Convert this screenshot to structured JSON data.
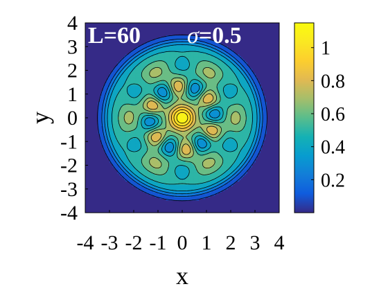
{
  "chart_data": {
    "type": "heatmap",
    "subtype": "filled-contour",
    "xlabel": "x",
    "ylabel": "y",
    "xlim": [
      -4,
      4
    ],
    "ylim": [
      -4,
      4
    ],
    "xticks": [
      "-4",
      "-3",
      "-2",
      "-1",
      "0",
      "1",
      "2",
      "3",
      "4"
    ],
    "yticks": [
      "-4",
      "-3",
      "-2",
      "-1",
      "0",
      "1",
      "2",
      "3",
      "4"
    ],
    "annotations": [
      {
        "text": "L=60",
        "position": "top-left"
      },
      {
        "symbol": "σ",
        "text": "=0.5",
        "position": "top-right"
      }
    ],
    "colorbar": {
      "colormap": "parula",
      "range": [
        0,
        1.15
      ],
      "ticks": [
        0.2,
        0.4,
        0.6,
        0.8,
        1
      ],
      "tick_labels": [
        "0.2",
        "0.4",
        "0.6",
        "0.8",
        "1"
      ],
      "placement": "right"
    },
    "grid": false,
    "field": {
      "description": "radially bounded intensity pattern: central peak, six off-center maxima on an inner ring, six weaker maxima on an outer ring, zero outside radius about 3.2",
      "center_peak": {
        "x": 0,
        "y": 0,
        "value": 1.15
      },
      "disk_radius": 3.2,
      "plateau_value": 0.55,
      "inner_ring_radius": 1.35,
      "outer_ring_radius": 2.2,
      "inner_ring_count": 6
    }
  }
}
